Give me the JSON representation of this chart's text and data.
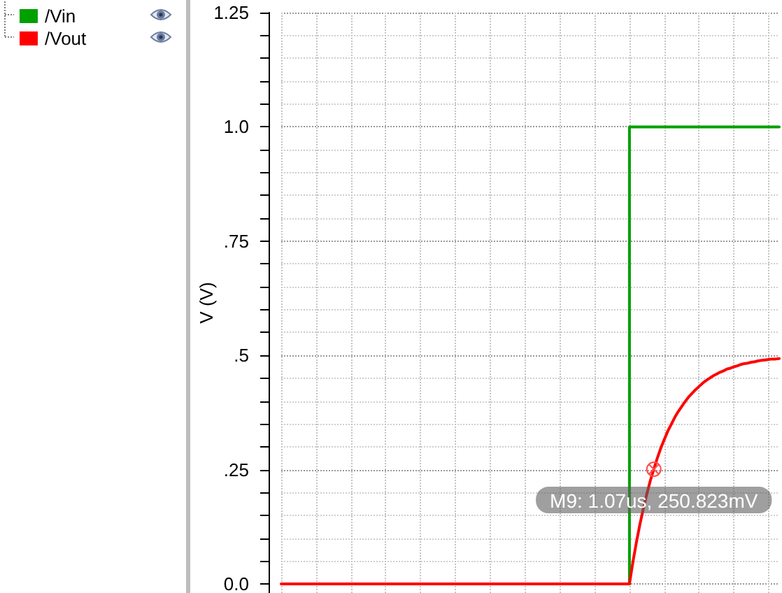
{
  "chart_data": {
    "type": "line",
    "ylabel": "V (V)",
    "categories": [
      null,
      null,
      null,
      null,
      null,
      null,
      null,
      null,
      null,
      null,
      null,
      null,
      null,
      null,
      null,
      null,
      null,
      null,
      null,
      null,
      null,
      null,
      null,
      null,
      null,
      null,
      null,
      null,
      null,
      null,
      null,
      null,
      null,
      null,
      null,
      null,
      null,
      null,
      null,
      null,
      null,
      null,
      null,
      null,
      null,
      null,
      null,
      null,
      null,
      null,
      null,
      null,
      null,
      null,
      null,
      null,
      null,
      null,
      null,
      null,
      null,
      null,
      null,
      null,
      null,
      null,
      null,
      null,
      null,
      null,
      null,
      null,
      null,
      null,
      null,
      null,
      null,
      null,
      null,
      null,
      null,
      null,
      null,
      null,
      null,
      null,
      null,
      null,
      null,
      null,
      null,
      null,
      null,
      null,
      null,
      null,
      null,
      null,
      null,
      null,
      null,
      null,
      null,
      null,
      null,
      null,
      null,
      null,
      null,
      null,
      null,
      null,
      null,
      null,
      null,
      null,
      null,
      null,
      null,
      null,
      null,
      null,
      null,
      null,
      null,
      null,
      null,
      null,
      null,
      null,
      null,
      null,
      null,
      null,
      null,
      null,
      null,
      null,
      null,
      null,
      null,
      null,
      null,
      null
    ],
    "series": [
      {
        "name": "/Vin",
        "color": "#00a000",
        "type": "step",
        "values": [
          null,
          null,
          null,
          null,
          null,
          null,
          null,
          null,
          null,
          null,
          null,
          null,
          null,
          null,
          null,
          null,
          null,
          null,
          null,
          null,
          null,
          null,
          null,
          null,
          null,
          null,
          null,
          null,
          null,
          null,
          null,
          null,
          null,
          null,
          null,
          null,
          null,
          null,
          null,
          null,
          null,
          null,
          null,
          null,
          null,
          null,
          null,
          null,
          null,
          null,
          null,
          null,
          null,
          null,
          null,
          null,
          null,
          null,
          null,
          null,
          null,
          null,
          null,
          null,
          null,
          null,
          null,
          null,
          null,
          null,
          null,
          null,
          null,
          null,
          null,
          null,
          null,
          null,
          null,
          null,
          null,
          null,
          null,
          null,
          null,
          null,
          null,
          null,
          null,
          null,
          null,
          null,
          null,
          null,
          null,
          null,
          null,
          null,
          null,
          0,
          1,
          1,
          1,
          1,
          1,
          1,
          1,
          1,
          1,
          1,
          1,
          1,
          1,
          1,
          1,
          1,
          1,
          1,
          1,
          1,
          1,
          1,
          1,
          1,
          1,
          1,
          1,
          1,
          1,
          1,
          1,
          1,
          1,
          1,
          1,
          1,
          1,
          1,
          1,
          1,
          1,
          1,
          1,
          1
        ]
      },
      {
        "name": "/Vout",
        "color": "#ff0000",
        "values": [
          0,
          0,
          0,
          0,
          0,
          0,
          0,
          0,
          0,
          0,
          0,
          0,
          0,
          0,
          0,
          0,
          0,
          0,
          0,
          0,
          0,
          0,
          0,
          0,
          0,
          0,
          0,
          0,
          0,
          0,
          0,
          0,
          0,
          0,
          0,
          0,
          0,
          0,
          0,
          0,
          0,
          0,
          0,
          0,
          0,
          0,
          0,
          0,
          0,
          0,
          0,
          0,
          0,
          0,
          0,
          0,
          0,
          0,
          0,
          0,
          0,
          0,
          0,
          0,
          0,
          0,
          0,
          0,
          0,
          0,
          0,
          0,
          0,
          0,
          0,
          0,
          0,
          0,
          0,
          0,
          0,
          0,
          0,
          0,
          0,
          0,
          0,
          0,
          0,
          0,
          0,
          0,
          0,
          0,
          0,
          0,
          0,
          0,
          0,
          0,
          0,
          0.048,
          0.091,
          0.13,
          0.165,
          0.197,
          0.226,
          0.251,
          0.275,
          0.297,
          0.316,
          0.334,
          0.349,
          0.364,
          0.377,
          0.388,
          0.399,
          0.409,
          0.417,
          0.425,
          0.432,
          0.439,
          0.445,
          0.45,
          0.455,
          0.459,
          0.463,
          0.466,
          0.47,
          0.472,
          0.475,
          0.477,
          0.48,
          0.482,
          0.483,
          0.485,
          0.486,
          0.488,
          0.489,
          0.49,
          0.491,
          0.492,
          0.492,
          0.493
        ]
      }
    ],
    "ylim": [
      -0.02,
      1.25
    ],
    "yticks": [
      {
        "value": 0,
        "label": "0.0"
      },
      {
        "value": 0.05,
        "label": null
      },
      {
        "value": 0.1,
        "label": null
      },
      {
        "value": 0.15,
        "label": null
      },
      {
        "value": 0.2,
        "label": null
      },
      {
        "value": 0.25,
        "label": ".25"
      },
      {
        "value": 0.3,
        "label": null
      },
      {
        "value": 0.35,
        "label": null
      },
      {
        "value": 0.4,
        "label": null
      },
      {
        "value": 0.45,
        "label": null
      },
      {
        "value": 0.5,
        "label": ".5"
      },
      {
        "value": 0.55,
        "label": null
      },
      {
        "value": 0.6,
        "label": null
      },
      {
        "value": 0.65,
        "label": null
      },
      {
        "value": 0.7,
        "label": null
      },
      {
        "value": 0.75,
        "label": ".75"
      },
      {
        "value": 0.8,
        "label": null
      },
      {
        "value": 0.85,
        "label": null
      },
      {
        "value": 0.9,
        "label": null
      },
      {
        "value": 0.95,
        "label": null
      },
      {
        "value": 1,
        "label": "1.0"
      },
      {
        "value": 1.05,
        "label": null
      },
      {
        "value": 1.1,
        "label": null
      },
      {
        "value": 1.15,
        "label": null
      },
      {
        "value": 1.2,
        "label": null
      },
      1.25
    ],
    "tick_labels": "y",
    "grid": true,
    "legend": "top left",
    "marker": "none",
    "line_style": "solid",
    "annotations": [
      {
        "text": "M9: 1.07us, 250.823mV",
        "y": 0.250823
      }
    ]
  }
}
